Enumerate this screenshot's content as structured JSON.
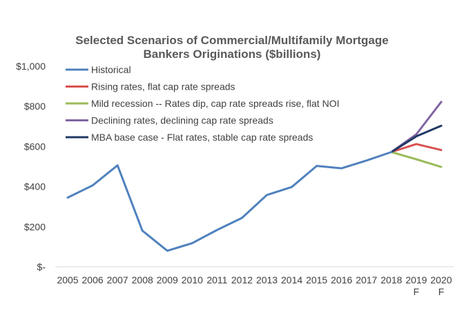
{
  "chart_data": {
    "type": "line",
    "title_lines": [
      "Selected Scenarios of Commercial/Multifamily Mortgage",
      "Bankers Originations ($billions)"
    ],
    "xlabel": "",
    "ylabel": "",
    "categories": [
      "2005",
      "2006",
      "2007",
      "2008",
      "2009",
      "2010",
      "2011",
      "2012",
      "2013",
      "2014",
      "2015",
      "2016",
      "2017",
      "2018",
      "2019",
      "2020"
    ],
    "category_sublabels": [
      "",
      "",
      "",
      "",
      "",
      "",
      "",
      "",
      "",
      "",
      "",
      "",
      "",
      "",
      "F",
      "F"
    ],
    "ylim": [
      0,
      1000
    ],
    "y_ticks": [
      0,
      200,
      400,
      600,
      800,
      1000
    ],
    "y_tick_labels": [
      "$-",
      "$200",
      "$400",
      "$600",
      "$800",
      "$1,000"
    ],
    "grid": false,
    "legend_position": "top-left",
    "series": [
      {
        "name": "Historical",
        "color": "#4F81BD",
        "values": [
          345,
          406,
          506,
          180,
          80,
          118,
          184,
          244,
          358,
          398,
          503,
          491,
          530,
          572,
          null,
          null
        ]
      },
      {
        "name": "Rising rates, flat cap rate spreads",
        "color": "#D9504F",
        "values": [
          null,
          null,
          null,
          null,
          null,
          null,
          null,
          null,
          null,
          null,
          null,
          null,
          null,
          572,
          612,
          582
        ]
      },
      {
        "name": "Mild recession -- Rates dip, cap rate spreads rise, flat NOI",
        "color": "#9BBB59",
        "values": [
          null,
          null,
          null,
          null,
          null,
          null,
          null,
          null,
          null,
          null,
          null,
          null,
          null,
          572,
          536,
          498
        ]
      },
      {
        "name": "Declining rates, declining cap rate spreads",
        "color": "#8064A2",
        "values": [
          null,
          null,
          null,
          null,
          null,
          null,
          null,
          null,
          null,
          null,
          null,
          null,
          null,
          572,
          660,
          822
        ]
      },
      {
        "name": "MBA base case - Flat rates, stable cap rate spreads",
        "color": "#1F3864",
        "values": [
          null,
          null,
          null,
          null,
          null,
          null,
          null,
          null,
          null,
          null,
          null,
          null,
          null,
          572,
          650,
          703
        ]
      }
    ]
  }
}
